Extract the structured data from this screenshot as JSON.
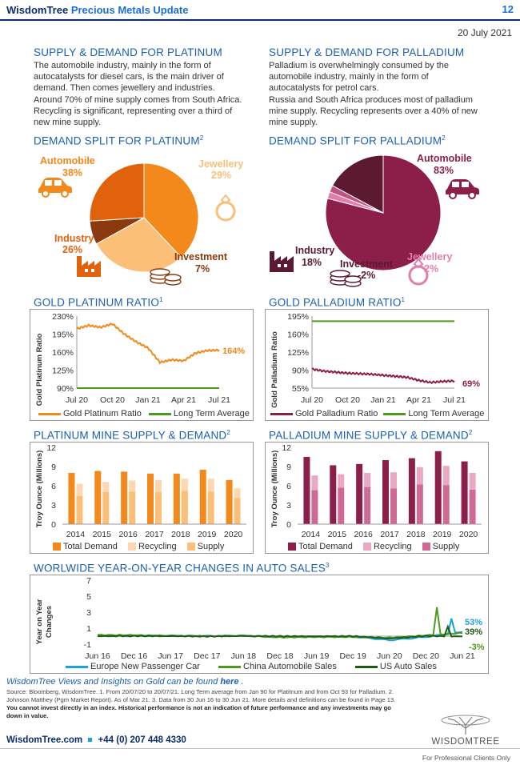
{
  "header": {
    "brand": "WisdomTree",
    "title": "Precious Metals Update",
    "page": "12",
    "date": "20 July 2021"
  },
  "platinum_supply": {
    "title": "SUPPLY & DEMAND FOR PLATINUM",
    "lines": [
      "The automobile industry, mainly in the form of",
      "autocatalysts for diesel cars, is the main driver of",
      "demand. Then comes jewellery and industries.",
      "Around 70% of mine supply comes from South Africa.",
      "Recycling is significant, representing over a third of",
      "new mine supply."
    ]
  },
  "palladium_supply": {
    "title": "SUPPLY & DEMAND FOR PALLADIUM",
    "lines": [
      "Palladium is overwhelmingly consumed by the",
      "automobile industry, mainly in the form of",
      "autocatalysts for petrol cars.",
      "Russia and South Africa produces most of palladium",
      "mine supply. Recycling represents over a 40% of new",
      "mine supply."
    ]
  },
  "pie_platinum": {
    "title": "DEMAND SPLIT FOR PLATINUM",
    "sup": "2",
    "slices": [
      {
        "label": "Automobile",
        "pct": "38%",
        "value": 38,
        "color": "#f2891a"
      },
      {
        "label": "Jewellery",
        "pct": "29%",
        "value": 29,
        "color": "#fbbf78"
      },
      {
        "label": "Investment",
        "pct": "7%",
        "value": 7,
        "color": "#8a3a0e"
      },
      {
        "label": "Industry",
        "pct": "26%",
        "value": 26,
        "color": "#e0620c"
      }
    ]
  },
  "pie_palladium": {
    "title": "DEMAND SPLIT FOR PALLADIUM",
    "sup": "2",
    "slices": [
      {
        "label": "Automobile",
        "pct": "83%",
        "value": 83,
        "color": "#8c1f4a"
      },
      {
        "label": "Jewellery",
        "pct": "2%",
        "value": 2,
        "color": "#e37ea8"
      },
      {
        "label": "Investment",
        "pct": "-2%",
        "value": -2,
        "color": "#c05584"
      },
      {
        "label": "Industry",
        "pct": "18%",
        "value": 18,
        "color": "#5c1a30"
      }
    ]
  },
  "ratio_platinum": {
    "title": "GOLD PLATINUM RATIO",
    "sup": "1",
    "ylabel": "Gold Platinum Ratio",
    "yticks": [
      "230%",
      "195%",
      "160%",
      "125%",
      "90%"
    ],
    "xticks": [
      "Jul 20",
      "Oct 20",
      "Jan 21",
      "Apr 21",
      "Jul 21"
    ],
    "end_label": "164%",
    "legend": [
      "Gold Platinum Ratio",
      "Long Term Average"
    ]
  },
  "ratio_palladium": {
    "title": "GOLD PALLADIUM RATIO",
    "sup": "1",
    "ylabel": "Gold Palladium Ratio",
    "yticks": [
      "195%",
      "160%",
      "125%",
      "90%",
      "55%"
    ],
    "xticks": [
      "Jul 20",
      "Oct 20",
      "Jan 21",
      "Apr 21",
      "Jul 21"
    ],
    "end_label": "69%",
    "legend": [
      "Gold Palladium Ratio",
      "Long Term Average"
    ]
  },
  "mine_platinum": {
    "title": "PLATINUM MINE SUPPLY & DEMAND",
    "sup": "2",
    "ylabel": "Troy Ounce (Millions)",
    "yticks": [
      "12",
      "9",
      "6",
      "3",
      "0"
    ],
    "legend": [
      "Total Demand",
      "Recycling",
      "Supply"
    ]
  },
  "mine_palladium": {
    "title": "PALLADIUM MINE SUPPLY & DEMAND",
    "sup": "2",
    "ylabel": "Troy Ounce (Millions)",
    "yticks": [
      "12",
      "9",
      "6",
      "3",
      "0"
    ],
    "legend": [
      "Total Demand",
      "Recycling",
      "Supply"
    ]
  },
  "auto_sales": {
    "title": "WORLWIDE YEAR-ON-YEAR CHANGES IN AUTO SALES",
    "sup": "3",
    "ylabel1": "Year on Year",
    "ylabel2": "Changes",
    "yticks": [
      "7",
      "5",
      "3",
      "1",
      "-1"
    ],
    "xticks": [
      "Jun 16",
      "Dec 16",
      "Jun 17",
      "Dec 17",
      "Jun 18",
      "Dec 18",
      "Jun 19",
      "Dec 19",
      "Jun 20",
      "Dec 20",
      "Jun 21"
    ],
    "end_labels": [
      "53%",
      "39%",
      "-3%"
    ],
    "legend": [
      "Europe New Passenger Car",
      "China Automobile Sales",
      "US Auto Sales"
    ]
  },
  "chart_data": [
    {
      "type": "pie",
      "title": "DEMAND SPLIT FOR PLATINUM",
      "categories": [
        "Automobile",
        "Jewellery",
        "Investment",
        "Industry"
      ],
      "values": [
        38,
        29,
        7,
        26
      ]
    },
    {
      "type": "pie",
      "title": "DEMAND SPLIT FOR PALLADIUM",
      "categories": [
        "Automobile",
        "Jewellery",
        "Investment",
        "Industry"
      ],
      "values": [
        83,
        2,
        -2,
        18
      ]
    },
    {
      "type": "line",
      "title": "GOLD PLATINUM RATIO",
      "ylabel": "Gold Platinum Ratio",
      "ylim": [
        90,
        230
      ],
      "x": [
        "Jul 20",
        "Aug 20",
        "Sep 20",
        "Oct 20",
        "Nov 20",
        "Dec 20",
        "Jan 21",
        "Feb 21",
        "Mar 21",
        "Apr 21",
        "May 21",
        "Jun 21",
        "Jul 21"
      ],
      "series": [
        {
          "name": "Gold Platinum Ratio",
          "values": [
            205,
            212,
            208,
            215,
            195,
            180,
            168,
            140,
            145,
            143,
            158,
            163,
            164
          ]
        },
        {
          "name": "Long Term Average",
          "values": [
            90,
            90,
            90,
            90,
            90,
            90,
            90,
            90,
            90,
            90,
            90,
            90,
            90
          ]
        }
      ]
    },
    {
      "type": "line",
      "title": "GOLD PALLADIUM RATIO",
      "ylabel": "Gold Palladium Ratio",
      "ylim": [
        55,
        195
      ],
      "x": [
        "Jul 20",
        "Aug 20",
        "Sep 20",
        "Oct 20",
        "Nov 20",
        "Dec 20",
        "Jan 21",
        "Feb 21",
        "Mar 21",
        "Apr 21",
        "May 21",
        "Jun 21",
        "Jul 21"
      ],
      "series": [
        {
          "name": "Gold Palladium Ratio",
          "values": [
            92,
            88,
            86,
            84,
            83,
            82,
            80,
            78,
            76,
            70,
            66,
            68,
            69
          ]
        },
        {
          "name": "Long Term Average",
          "values": [
            185,
            185,
            185,
            185,
            185,
            185,
            185,
            185,
            185,
            185,
            185,
            185,
            185
          ]
        }
      ]
    },
    {
      "type": "bar",
      "title": "PLATINUM MINE SUPPLY & DEMAND",
      "ylabel": "Troy Ounce (Millions)",
      "ylim": [
        0,
        12
      ],
      "categories": [
        "2014",
        "2015",
        "2016",
        "2017",
        "2018",
        "2019",
        "2020"
      ],
      "series": [
        {
          "name": "Total Demand",
          "values": [
            8.0,
            8.3,
            8.2,
            7.9,
            7.9,
            8.5,
            6.9
          ]
        },
        {
          "name": "Recycling",
          "values": [
            1.9,
            1.6,
            1.7,
            1.9,
            1.9,
            2.0,
            1.5
          ]
        },
        {
          "name": "Supply",
          "values": [
            4.4,
            5.0,
            5.1,
            5.0,
            5.2,
            5.1,
            4.1
          ]
        }
      ]
    },
    {
      "type": "bar",
      "title": "PALLADIUM MINE SUPPLY & DEMAND",
      "ylabel": "Troy Ounce (Millions)",
      "ylim": [
        0,
        12
      ],
      "categories": [
        "2014",
        "2015",
        "2016",
        "2017",
        "2018",
        "2019",
        "2020"
      ],
      "series": [
        {
          "name": "Total Demand",
          "values": [
            10.5,
            9.2,
            9.4,
            10.0,
            10.3,
            11.4,
            9.8
          ]
        },
        {
          "name": "Recycling",
          "values": [
            2.3,
            2.1,
            2.2,
            2.5,
            2.7,
            3.0,
            2.6
          ]
        },
        {
          "name": "Supply",
          "values": [
            5.3,
            5.7,
            5.8,
            5.6,
            6.2,
            6.1,
            5.4
          ]
        }
      ]
    },
    {
      "type": "line",
      "title": "WORLWIDE YEAR-ON-YEAR CHANGES IN AUTO SALES",
      "ylim": [
        -1,
        7
      ],
      "x": [
        "Jun 16",
        "Dec 16",
        "Jun 17",
        "Dec 17",
        "Jun 18",
        "Dec 18",
        "Jun 19",
        "Dec 19",
        "Jun 20",
        "Dec 20",
        "Jun 21"
      ],
      "series": [
        {
          "name": "Europe New Passenger Car",
          "values": [
            0.05,
            0.02,
            0.05,
            0.01,
            0.05,
            -0.1,
            -0.05,
            -0.05,
            -0.5,
            -0.1,
            0.53
          ]
        },
        {
          "name": "China Automobile Sales",
          "values": [
            0.15,
            0.12,
            0.05,
            0.0,
            0.05,
            -0.15,
            -0.1,
            -0.1,
            -0.2,
            0.1,
            0.39
          ]
        },
        {
          "name": "US Auto Sales",
          "values": [
            0.0,
            0.03,
            0.0,
            -0.02,
            0.02,
            0.0,
            -0.02,
            0.0,
            -0.3,
            0.02,
            -0.03
          ]
        }
      ]
    }
  ],
  "footer": {
    "views_text": "WisdomTree Views and Insights on Gold can be found ",
    "views_link": "here",
    "source1": "Source: Bloomberg, WisdomTree. 1. From 20/07/20 to 20/07/21. Long Term average from Jan 90 for Platitnum and from Oct 93 for Palladium. 2.",
    "source2": "Johnson Matthey (Pgm Market Report). As of Mar 21. 3. Data from 30 Jun 16 to 30 Jun 21. More details and definitions can be found in Page 13.",
    "disclaimer1": "You cannot invest directly in an index. Historical performance is not an indication of future performance and any investments may go",
    "disclaimer2": "down in value.",
    "contact_site": "WisdomTree.com",
    "contact_phone": "+44 (0) 207 448 4330",
    "logo_text": "WISDOMTREE",
    "professional": "For Professional Clients Only"
  }
}
